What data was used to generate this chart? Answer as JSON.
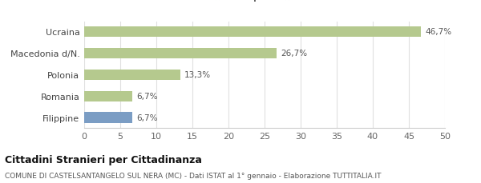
{
  "categories": [
    "Filippine",
    "Romania",
    "Polonia",
    "Macedonia d/N.",
    "Ucraina"
  ],
  "values": [
    6.7,
    6.7,
    13.3,
    26.7,
    46.7
  ],
  "colors": [
    "#7b9dc4",
    "#b5c98e",
    "#b5c98e",
    "#b5c98e",
    "#b5c98e"
  ],
  "labels": [
    "6,7%",
    "6,7%",
    "13,3%",
    "26,7%",
    "46,7%"
  ],
  "legend_europa_color": "#b5c98e",
  "legend_asia_color": "#7b9dc4",
  "xlim": [
    0,
    50
  ],
  "xticks": [
    0,
    5,
    10,
    15,
    20,
    25,
    30,
    35,
    40,
    45,
    50
  ],
  "title_bold": "Cittadini Stranieri per Cittadinanza",
  "subtitle": "COMUNE DI CASTELSANTANGELO SUL NERA (MC) - Dati ISTAT al 1° gennaio - Elaborazione TUTTITALIA.IT",
  "bar_height": 0.5,
  "background_color": "#ffffff",
  "grid_color": "#e0e0e0"
}
